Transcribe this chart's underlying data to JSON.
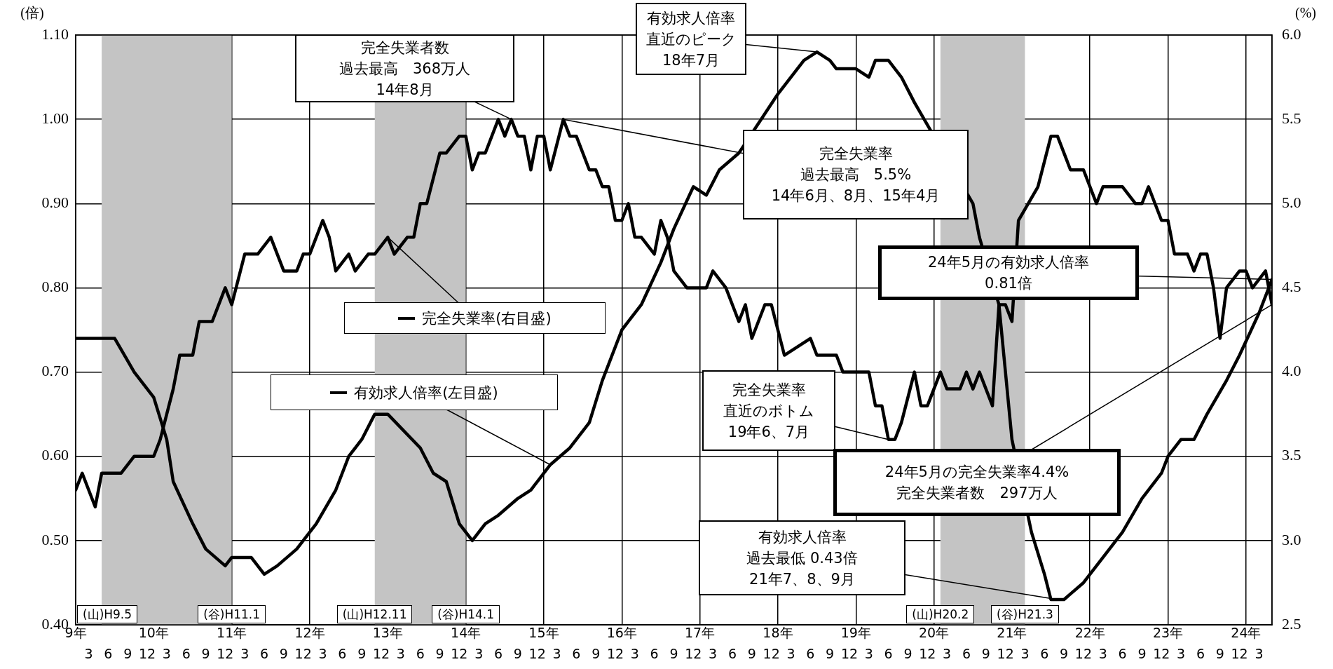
{
  "chart_data": {
    "type": "line",
    "ylabel": "(倍)",
    "y2label": "(%)",
    "xlim": [
      "1997-01",
      "2012-05"
    ],
    "xticks": [
      {
        "value": "1997-03",
        "label": "3"
      },
      {
        "value": "1997-06",
        "label": "6"
      },
      {
        "value": "1997-09",
        "label": "9"
      },
      {
        "value": "1997-12",
        "label": "12"
      },
      {
        "value": "1998-03",
        "label": "3"
      },
      {
        "value": "1998-06",
        "label": "6"
      },
      {
        "value": "1998-09",
        "label": "9"
      },
      {
        "value": "1998-12",
        "label": "12"
      },
      {
        "value": "1999-03",
        "label": "3"
      },
      {
        "value": "1999-06",
        "label": "6"
      },
      {
        "value": "1999-09",
        "label": "9"
      },
      {
        "value": "1999-12",
        "label": "12"
      },
      {
        "value": "2000-03",
        "label": "3"
      },
      {
        "value": "2000-06",
        "label": "6"
      },
      {
        "value": "2000-09",
        "label": "9"
      },
      {
        "value": "2000-12",
        "label": "12"
      },
      {
        "value": "2001-03",
        "label": "3"
      },
      {
        "value": "2001-06",
        "label": "6"
      },
      {
        "value": "2001-09",
        "label": "9"
      },
      {
        "value": "2001-12",
        "label": "12"
      },
      {
        "value": "2002-03",
        "label": "3"
      },
      {
        "value": "2002-06",
        "label": "6"
      },
      {
        "value": "2002-09",
        "label": "9"
      },
      {
        "value": "2002-12",
        "label": "12"
      },
      {
        "value": "2003-03",
        "label": "3"
      },
      {
        "value": "2003-06",
        "label": "6"
      },
      {
        "value": "2003-09",
        "label": "9"
      },
      {
        "value": "2003-12",
        "label": "12"
      },
      {
        "value": "2004-03",
        "label": "3"
      },
      {
        "value": "2004-06",
        "label": "6"
      },
      {
        "value": "2004-09",
        "label": "9"
      },
      {
        "value": "2004-12",
        "label": "12"
      },
      {
        "value": "2005-03",
        "label": "3"
      },
      {
        "value": "2005-06",
        "label": "6"
      },
      {
        "value": "2005-09",
        "label": "9"
      },
      {
        "value": "2005-12",
        "label": "12"
      },
      {
        "value": "2006-03",
        "label": "3"
      },
      {
        "value": "2006-06",
        "label": "6"
      },
      {
        "value": "2006-09",
        "label": "9"
      },
      {
        "value": "2006-12",
        "label": "12"
      },
      {
        "value": "2007-03",
        "label": "3"
      },
      {
        "value": "2007-06",
        "label": "6"
      },
      {
        "value": "2007-09",
        "label": "9"
      },
      {
        "value": "2007-12",
        "label": "12"
      },
      {
        "value": "2008-03",
        "label": "3"
      },
      {
        "value": "2008-06",
        "label": "6"
      },
      {
        "value": "2008-09",
        "label": "9"
      },
      {
        "value": "2008-12",
        "label": "12"
      },
      {
        "value": "2009-03",
        "label": "3"
      },
      {
        "value": "2009-06",
        "label": "6"
      },
      {
        "value": "2009-09",
        "label": "9"
      },
      {
        "value": "2009-12",
        "label": "12"
      },
      {
        "value": "2010-03",
        "label": "3"
      },
      {
        "value": "2010-06",
        "label": "6"
      },
      {
        "value": "2010-09",
        "label": "9"
      },
      {
        "value": "2010-12",
        "label": "12"
      },
      {
        "value": "2011-03",
        "label": "3"
      },
      {
        "value": "2011-06",
        "label": "6"
      },
      {
        "value": "2011-09",
        "label": "9"
      },
      {
        "value": "2011-12",
        "label": "12"
      },
      {
        "value": "2012-03",
        "label": "3"
      }
    ],
    "x2lim": [
      "1997-01",
      "2012-05"
    ],
    "x2ticks": [
      {
        "value": "1997-01",
        "label": "9年"
      },
      {
        "value": "1998-01",
        "label": "10年"
      },
      {
        "value": "1999-01",
        "label": "11年"
      },
      {
        "value": "2000-01",
        "label": "12年"
      },
      {
        "value": "2001-01",
        "label": "13年"
      },
      {
        "value": "2002-01",
        "label": "14年"
      },
      {
        "value": "2003-01",
        "label": "15年"
      },
      {
        "value": "2004-01",
        "label": "16年"
      },
      {
        "value": "2005-01",
        "label": "17年"
      },
      {
        "value": "2006-01",
        "label": "18年"
      },
      {
        "value": "2007-01",
        "label": "19年"
      },
      {
        "value": "2008-01",
        "label": "20年"
      },
      {
        "value": "2009-01",
        "label": "21年"
      },
      {
        "value": "2010-01",
        "label": "22年"
      },
      {
        "value": "2011-01",
        "label": "23年"
      },
      {
        "value": "2012-01",
        "label": "24年"
      }
    ],
    "ylim": [
      0.4,
      1.1
    ],
    "yticks": [
      {
        "value": 0.4,
        "label": "0.40"
      },
      {
        "value": 0.5,
        "label": "0.50"
      },
      {
        "value": 0.6,
        "label": "0.60"
      },
      {
        "value": 0.7,
        "label": "0.70"
      },
      {
        "value": 0.8,
        "label": "0.80"
      },
      {
        "value": 0.9,
        "label": "0.90"
      },
      {
        "value": 1.0,
        "label": "1.00"
      },
      {
        "value": 1.1,
        "label": "1.10"
      }
    ],
    "y2lim": [
      2.5,
      6.0
    ],
    "y2ticks": [
      {
        "value": 2.5,
        "label": "2.5"
      },
      {
        "value": 3.0,
        "label": "3.0"
      },
      {
        "value": 3.5,
        "label": "3.5"
      },
      {
        "value": 4.0,
        "label": "4.0"
      },
      {
        "value": 4.5,
        "label": "4.5"
      },
      {
        "value": 5.0,
        "label": "5.0"
      },
      {
        "value": 5.5,
        "label": "5.5"
      },
      {
        "value": 6.0,
        "label": "6.0"
      }
    ],
    "grid": true,
    "series": [
      {
        "name": "有効求人倍率(左目盛)",
        "color": "#000000",
        "x": [
          "1997-01",
          "1997-07",
          "1997-10",
          "1998-01",
          "1998-03",
          "1998-04",
          "1998-07",
          "1998-09",
          "1998-12",
          "1999-01",
          "1999-04",
          "1999-06",
          "1999-08",
          "1999-11",
          "2000-02",
          "2000-05",
          "2000-07",
          "2000-09",
          "2000-11",
          "2001-01",
          "2001-06",
          "2001-08",
          "2001-10",
          "2001-12",
          "2002-02",
          "2002-04",
          "2002-06",
          "2002-09",
          "2002-11",
          "2003-02",
          "2003-05",
          "2003-08",
          "2003-10",
          "2004-01",
          "2004-02",
          "2004-04",
          "2004-07",
          "2004-09",
          "2004-12",
          "2005-02",
          "2005-04",
          "2005-07",
          "2006-01",
          "2006-03",
          "2006-05",
          "2006-07",
          "2006-09",
          "2006-10",
          "2007-01",
          "2007-03",
          "2007-04",
          "2007-06",
          "2007-08",
          "2007-10",
          "2008-07",
          "2008-08",
          "2008-11",
          "2009-01",
          "2009-04",
          "2009-06",
          "2009-07",
          "2009-08",
          "2009-09",
          "2009-12",
          "2010-02",
          "2010-04",
          "2010-06",
          "2010-09",
          "2010-12",
          "2011-01",
          "2011-03",
          "2011-05",
          "2011-07",
          "2011-10",
          "2011-12",
          "2012-03",
          "2012-05"
        ],
        "values": [
          0.74,
          0.74,
          0.7,
          0.67,
          0.62,
          0.57,
          0.52,
          0.49,
          0.47,
          0.48,
          0.48,
          0.46,
          0.47,
          0.49,
          0.52,
          0.56,
          0.6,
          0.62,
          0.65,
          0.65,
          0.61,
          0.58,
          0.57,
          0.52,
          0.5,
          0.52,
          0.53,
          0.55,
          0.56,
          0.59,
          0.61,
          0.64,
          0.69,
          0.75,
          0.76,
          0.78,
          0.83,
          0.87,
          0.92,
          0.91,
          0.94,
          0.96,
          1.03,
          1.05,
          1.07,
          1.08,
          1.07,
          1.06,
          1.06,
          1.05,
          1.07,
          1.07,
          1.05,
          1.02,
          0.9,
          0.86,
          0.78,
          0.62,
          0.51,
          0.46,
          0.43,
          0.43,
          0.43,
          0.45,
          0.47,
          0.49,
          0.51,
          0.55,
          0.58,
          0.6,
          0.62,
          0.62,
          0.65,
          0.69,
          0.72,
          0.77,
          0.81
        ]
      },
      {
        "name": "完全失業率(右目盛)",
        "color": "#000000",
        "axis": "y2",
        "x": [
          "1997-01",
          "1997-02",
          "1997-04",
          "1997-05",
          "1997-08",
          "1997-10",
          "1998-01",
          "1998-02",
          "1998-04",
          "1998-05",
          "1998-07",
          "1998-08",
          "1998-10",
          "1998-12",
          "1999-01",
          "1999-03",
          "1999-05",
          "1999-07",
          "1999-09",
          "1999-11",
          "1999-12",
          "2000-01",
          "2000-03",
          "2000-04",
          "2000-05",
          "2000-07",
          "2000-08",
          "2000-10",
          "2000-11",
          "2001-01",
          "2001-02",
          "2001-04",
          "2001-05",
          "2001-06",
          "2001-07",
          "2001-09",
          "2001-10",
          "2001-12",
          "2002-01",
          "2002-02",
          "2002-03",
          "2002-04",
          "2002-06",
          "2002-07",
          "2002-08",
          "2002-09",
          "2002-10",
          "2002-11",
          "2002-12",
          "2003-01",
          "2003-02",
          "2003-04",
          "2003-05",
          "2003-06",
          "2003-08",
          "2003-09",
          "2003-10",
          "2003-11",
          "2003-12",
          "2004-01",
          "2004-02",
          "2004-03",
          "2004-04",
          "2004-06",
          "2004-07",
          "2004-08",
          "2004-09",
          "2004-11",
          "2005-02",
          "2005-03",
          "2005-05",
          "2005-06",
          "2005-07",
          "2005-08",
          "2005-09",
          "2005-11",
          "2005-12",
          "2006-02",
          "2006-06",
          "2006-07",
          "2006-10",
          "2006-11",
          "2007-03",
          "2007-04",
          "2007-05",
          "2007-06",
          "2007-07",
          "2007-08",
          "2007-10",
          "2007-11",
          "2007-12",
          "2008-02",
          "2008-03",
          "2008-05",
          "2008-06",
          "2008-07",
          "2008-08",
          "2008-10",
          "2008-11",
          "2008-12",
          "2009-01",
          "2009-02",
          "2009-05",
          "2009-07",
          "2009-08",
          "2009-10",
          "2009-12",
          "2010-02",
          "2010-03",
          "2010-06",
          "2010-08",
          "2010-09",
          "2010-10",
          "2010-11",
          "2010-12",
          "2011-01",
          "2011-02",
          "2011-04",
          "2011-05",
          "2011-06",
          "2011-07",
          "2011-08",
          "2011-09",
          "2011-10",
          "2011-12",
          "2012-01",
          "2012-02",
          "2012-04",
          "2012-05"
        ],
        "values": [
          3.3,
          3.4,
          3.2,
          3.4,
          3.4,
          3.5,
          3.5,
          3.6,
          3.9,
          4.1,
          4.1,
          4.3,
          4.3,
          4.5,
          4.4,
          4.7,
          4.7,
          4.8,
          4.6,
          4.6,
          4.7,
          4.7,
          4.9,
          4.8,
          4.6,
          4.7,
          4.6,
          4.7,
          4.7,
          4.8,
          4.7,
          4.8,
          4.8,
          5.0,
          5.0,
          5.3,
          5.3,
          5.4,
          5.4,
          5.2,
          5.3,
          5.3,
          5.5,
          5.4,
          5.5,
          5.4,
          5.4,
          5.2,
          5.4,
          5.4,
          5.2,
          5.5,
          5.4,
          5.4,
          5.2,
          5.2,
          5.1,
          5.1,
          4.9,
          4.9,
          5.0,
          4.8,
          4.8,
          4.7,
          4.9,
          4.8,
          4.6,
          4.5,
          4.5,
          4.6,
          4.5,
          4.4,
          4.3,
          4.4,
          4.2,
          4.4,
          4.4,
          4.1,
          4.2,
          4.1,
          4.1,
          4.0,
          4.0,
          3.8,
          3.8,
          3.6,
          3.6,
          3.7,
          4.0,
          3.8,
          3.8,
          4.0,
          3.9,
          3.9,
          4.0,
          3.9,
          4.0,
          3.8,
          4.4,
          4.4,
          4.3,
          4.9,
          5.1,
          5.4,
          5.4,
          5.2,
          5.2,
          5.0,
          5.1,
          5.1,
          5.0,
          5.0,
          5.1,
          5.0,
          4.9,
          4.9,
          4.7,
          4.7,
          4.6,
          4.7,
          4.7,
          4.5,
          4.2,
          4.5,
          4.6,
          4.6,
          4.5,
          4.6,
          4.4
        ]
      }
    ],
    "bands": [
      {
        "axis": "x",
        "from": "1997-05",
        "to": "1999-01",
        "label": "(山)H9.5",
        "color": "#c4c4c4"
      },
      {
        "axis": "x",
        "from": "2000-11",
        "to": "2002-01",
        "label": "(山)H12.11",
        "color": "#c4c4c4"
      },
      {
        "axis": "x",
        "from": "2008-02",
        "to": "2009-03",
        "label": "(山)H20.2",
        "color": "#c4c4c4"
      }
    ],
    "legend": "left",
    "annotations": [
      {
        "text": "完全失業者数",
        "x": "2002-08",
        "y": 1.0
      },
      "過去最高　368万人",
      "14年8月",
      {
        "text": "有効求人倍率",
        "x": "2006-07",
        "y": 1.08
      },
      "直近のピーク",
      "18年7月",
      {
        "text": "完全失業率",
        "x": "2003-04",
        "y": 1.0
      },
      "過去最高　5.5%",
      "14年6月、8月、15年4月",
      {
        "text": "24年5月の有効求人倍率",
        "x": "2012-05",
        "y": 0.81
      },
      "0.81倍",
      {
        "text": "完全失業率",
        "x": "2007-06",
        "y": 0.62
      },
      "直近のボトム",
      "19年6、7月",
      {
        "text": "24年5月の完全失業率4.4%",
        "x": "2012-05",
        "y": 0.78
      },
      "完全失業者数　297万人",
      {
        "text": "有効求人倍率",
        "x": "2009-08",
        "y": 0.43
      },
      "過去最低 0.43倍",
      "21年7、8、9月",
      {
        "text": "(谷)H11.1",
        "x": "1999-01",
        "y": 0.4
      },
      {
        "text": "(谷)H14.1",
        "x": "2002-01",
        "y": 0.4
      },
      {
        "text": "(谷)H21.3",
        "x": "2009-03",
        "y": 0.4
      }
    ]
  }
}
